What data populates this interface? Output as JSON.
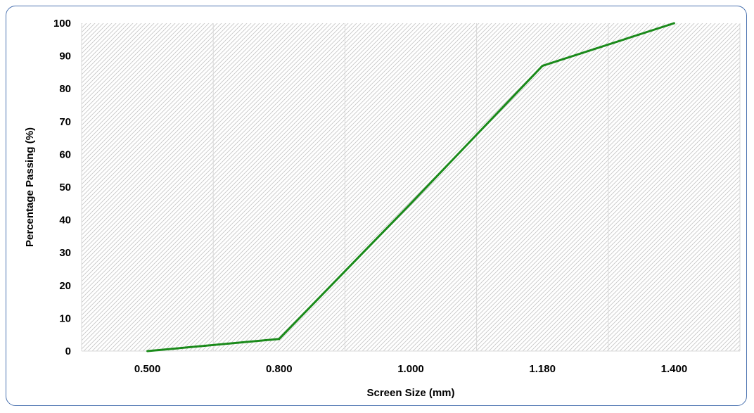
{
  "chart_data": {
    "type": "line",
    "title": "",
    "xlabel": "Screen Size (mm)",
    "ylabel": "Percentage Passing (%)",
    "categories": [
      "0.500",
      "0.800",
      "1.000",
      "1.180",
      "1.400"
    ],
    "series": [
      {
        "values": [
          0,
          3.7,
          45,
          87,
          100
        ],
        "color": "#1a8a1a"
      }
    ],
    "ylim": [
      0,
      100
    ],
    "y_ticks": [
      0,
      10,
      20,
      30,
      40,
      50,
      60,
      70,
      80,
      90,
      100
    ],
    "grid": "vertical major gridlines",
    "plot_background": "diagonal hatch pattern, light gray",
    "legend": "none",
    "frame_border_color": "#4a72b0"
  }
}
